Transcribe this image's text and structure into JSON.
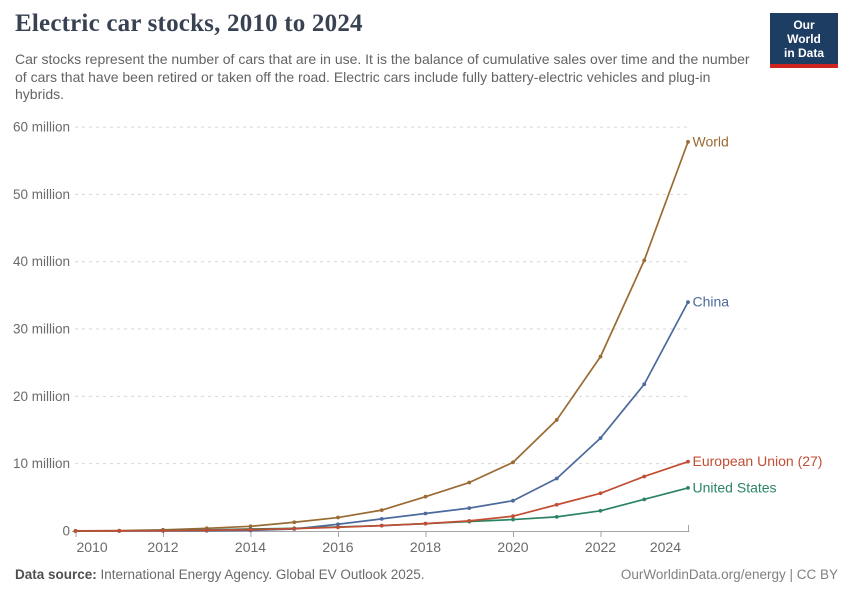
{
  "header": {
    "title": "Electric car stocks, 2010 to 2024",
    "subtitle": "Car stocks represent the number of cars that are in use. It is the balance of cumulative sales over time and the number of cars that have been retired or taken off the road. Electric cars include fully battery-electric vehicles and plug-in hybrids.",
    "logo": {
      "line1": "Our World",
      "line2": "in Data",
      "bg": "#1D3D63",
      "accent": "#CF2520"
    }
  },
  "chart_data": {
    "type": "line",
    "title": "Electric car stocks, 2010 to 2024",
    "xlabel": "",
    "ylabel": "",
    "unit": "million cars in use",
    "ylim": [
      0,
      60
    ],
    "grid": "horizontal dashed",
    "legend_position": "end-of-line labels, right of chart",
    "x": [
      2010,
      2011,
      2012,
      2013,
      2014,
      2015,
      2016,
      2017,
      2018,
      2019,
      2020,
      2021,
      2022,
      2023,
      2024
    ],
    "series": [
      {
        "name": "World",
        "color": "#9A6A33",
        "values": [
          0.02,
          0.06,
          0.18,
          0.4,
          0.7,
          1.3,
          2.0,
          3.1,
          5.1,
          7.2,
          10.2,
          16.5,
          25.9,
          40.2,
          57.8
        ]
      },
      {
        "name": "China",
        "color": "#4C6A9C",
        "values": [
          0.0,
          0.01,
          0.02,
          0.03,
          0.1,
          0.3,
          1.0,
          1.8,
          2.6,
          3.4,
          4.5,
          7.8,
          13.8,
          21.8,
          34.0
        ]
      },
      {
        "name": "European Union (27)",
        "color": "#C24D33",
        "values": [
          0.0,
          0.02,
          0.05,
          0.11,
          0.2,
          0.35,
          0.55,
          0.8,
          1.1,
          1.5,
          2.2,
          3.9,
          5.6,
          8.1,
          10.3
        ]
      },
      {
        "name": "United States",
        "color": "#2C8465",
        "values": [
          0.0,
          0.02,
          0.07,
          0.17,
          0.3,
          0.4,
          0.6,
          0.8,
          1.1,
          1.4,
          1.7,
          2.1,
          3.0,
          4.7,
          6.4
        ]
      }
    ],
    "yticks": [
      {
        "v": 0,
        "label": "0"
      },
      {
        "v": 10,
        "label": "10 million"
      },
      {
        "v": 20,
        "label": "20 million"
      },
      {
        "v": 30,
        "label": "30 million"
      },
      {
        "v": 40,
        "label": "40 million"
      },
      {
        "v": 50,
        "label": "50 million"
      },
      {
        "v": 60,
        "label": "60 million"
      }
    ],
    "xtick_labels": [
      "2010",
      "2012",
      "2014",
      "2016",
      "2018",
      "2020",
      "2022",
      "2024"
    ]
  },
  "footer": {
    "source_label": "Data source:",
    "source_text": " International Energy Agency. Global EV Outlook 2025.",
    "credit": "OurWorldinData.org/energy | CC BY"
  }
}
